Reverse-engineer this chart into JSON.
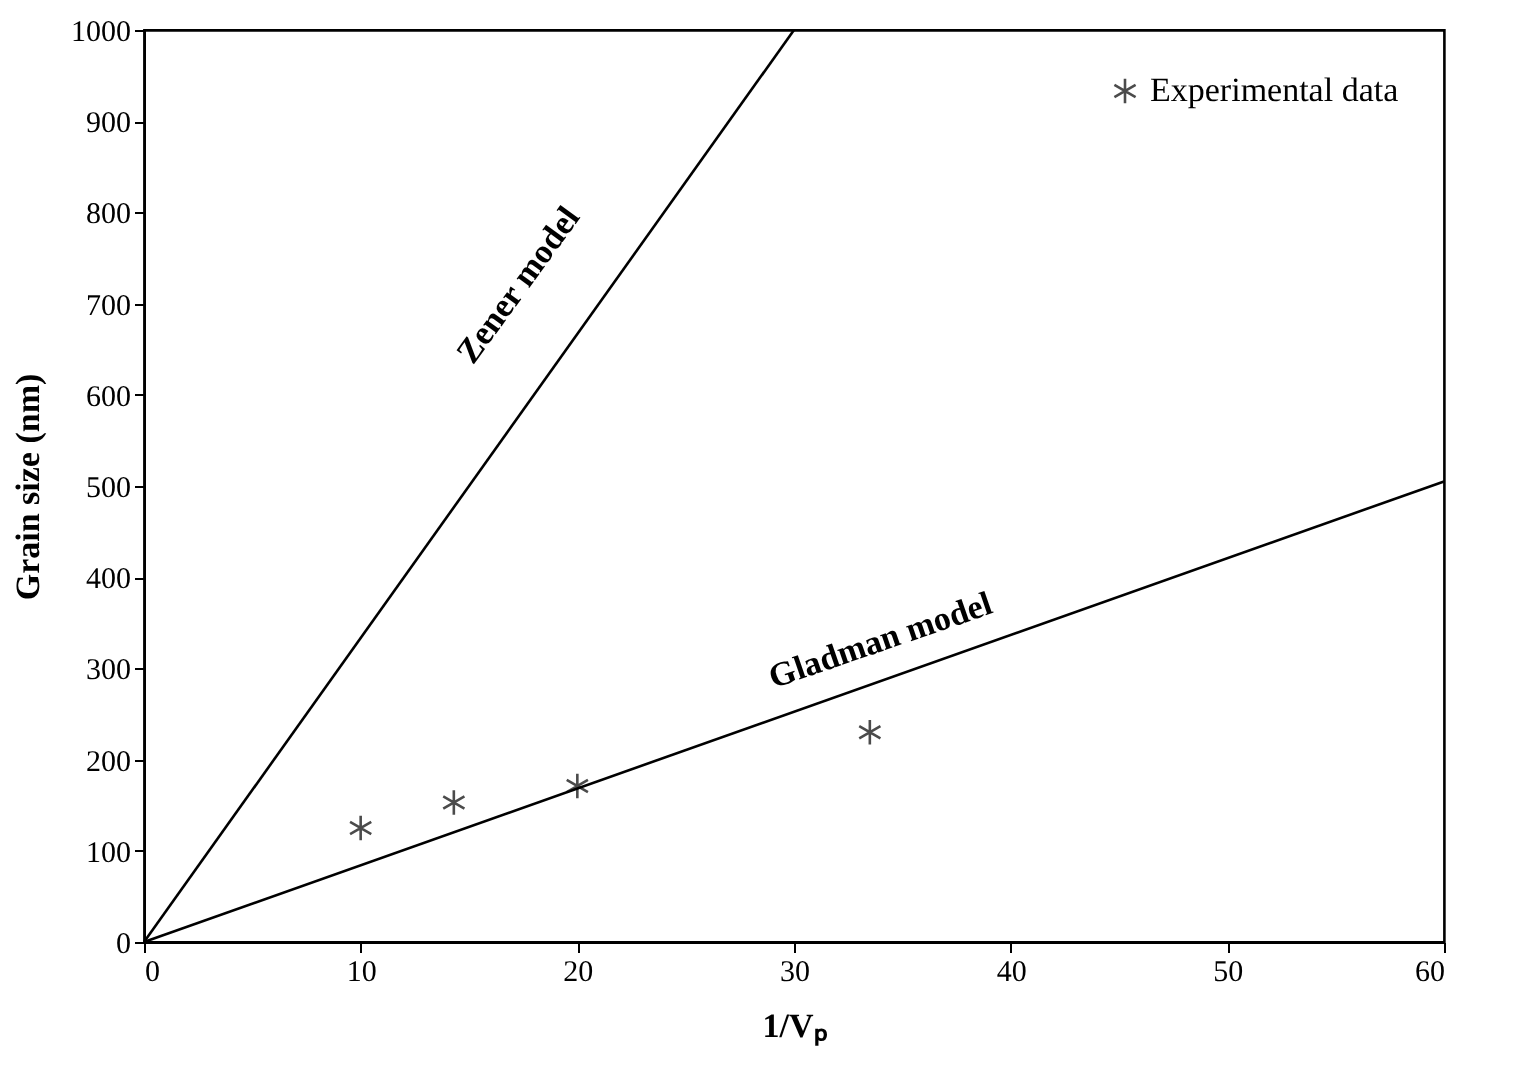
{
  "chart_data": {
    "type": "scatter",
    "xlabel": "1/Vₚ",
    "ylabel": "Grain size (nm)",
    "xlim": [
      0,
      60
    ],
    "xticks": [
      0,
      10,
      20,
      30,
      40,
      50,
      60
    ],
    "ylim": [
      0,
      1000
    ],
    "yticks": [
      0,
      100,
      200,
      300,
      400,
      500,
      600,
      700,
      800,
      900,
      1000
    ],
    "grid": false,
    "legend": "top right",
    "series": [
      {
        "type": "line",
        "color": "#000000",
        "line_style": "solid",
        "x": [
          0,
          30
        ],
        "values": [
          0,
          1000
        ]
      },
      {
        "type": "line",
        "color": "#000000",
        "line_style": "solid",
        "x": [
          0,
          60
        ],
        "values": [
          0,
          505
        ]
      },
      {
        "name": "Experimental data",
        "color": "#000000",
        "marker": "cross",
        "x": [
          10,
          14.3,
          20,
          33.5
        ],
        "values": [
          125,
          153,
          171,
          230
        ]
      }
    ],
    "annotations": [
      "Zener model",
      "Gladman model"
    ]
  }
}
